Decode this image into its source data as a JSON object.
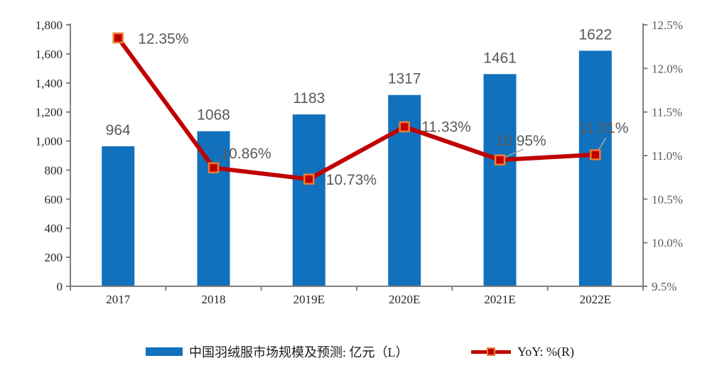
{
  "chart_data": {
    "type": "combo-bar-line",
    "title": "",
    "categories": [
      "2017",
      "2018",
      "2019E",
      "2020E",
      "2021E",
      "2022E"
    ],
    "series": [
      {
        "name": "中国羽绒服市场规模及预测: 亿元（L）",
        "type": "bar",
        "axis": "left",
        "values": [
          964,
          1068,
          1183,
          1317,
          1461,
          1622
        ],
        "data_labels": [
          "964",
          "1068",
          "1183",
          "1317",
          "1461",
          "1622"
        ],
        "color": "#1171BD"
      },
      {
        "name": "YoY: %(R)",
        "type": "line",
        "axis": "right",
        "values": [
          12.35,
          10.86,
          10.73,
          11.33,
          10.95,
          11.01
        ],
        "data_labels": [
          "12.35%",
          "10.86%",
          "10.73%",
          "11.33%",
          "10.95%",
          "11.01%"
        ],
        "color": "#C00000",
        "marker": "square",
        "marker_border_color": "#ED7D31"
      }
    ],
    "left_axis": {
      "min": 0,
      "max": 1800,
      "step": 200,
      "tick_labels": [
        "0",
        "200",
        "400",
        "600",
        "800",
        "1,000",
        "1,200",
        "1,400",
        "1,600",
        "1,800"
      ]
    },
    "right_axis": {
      "min": 9.5,
      "max": 12.5,
      "step": 0.5,
      "tick_labels": [
        "9.5%",
        "10.0%",
        "10.5%",
        "11.0%",
        "11.5%",
        "12.0%",
        "12.5%"
      ]
    },
    "grid": false,
    "legend_position": "bottom",
    "styles": {
      "background": "#FFFFFF",
      "axis_line_color": "#808080",
      "left_tick_color": "#262626",
      "right_tick_color": "#595959",
      "category_color": "#262626",
      "data_label_color": "#595959",
      "leader_line_color": "#A6A6A6"
    }
  }
}
